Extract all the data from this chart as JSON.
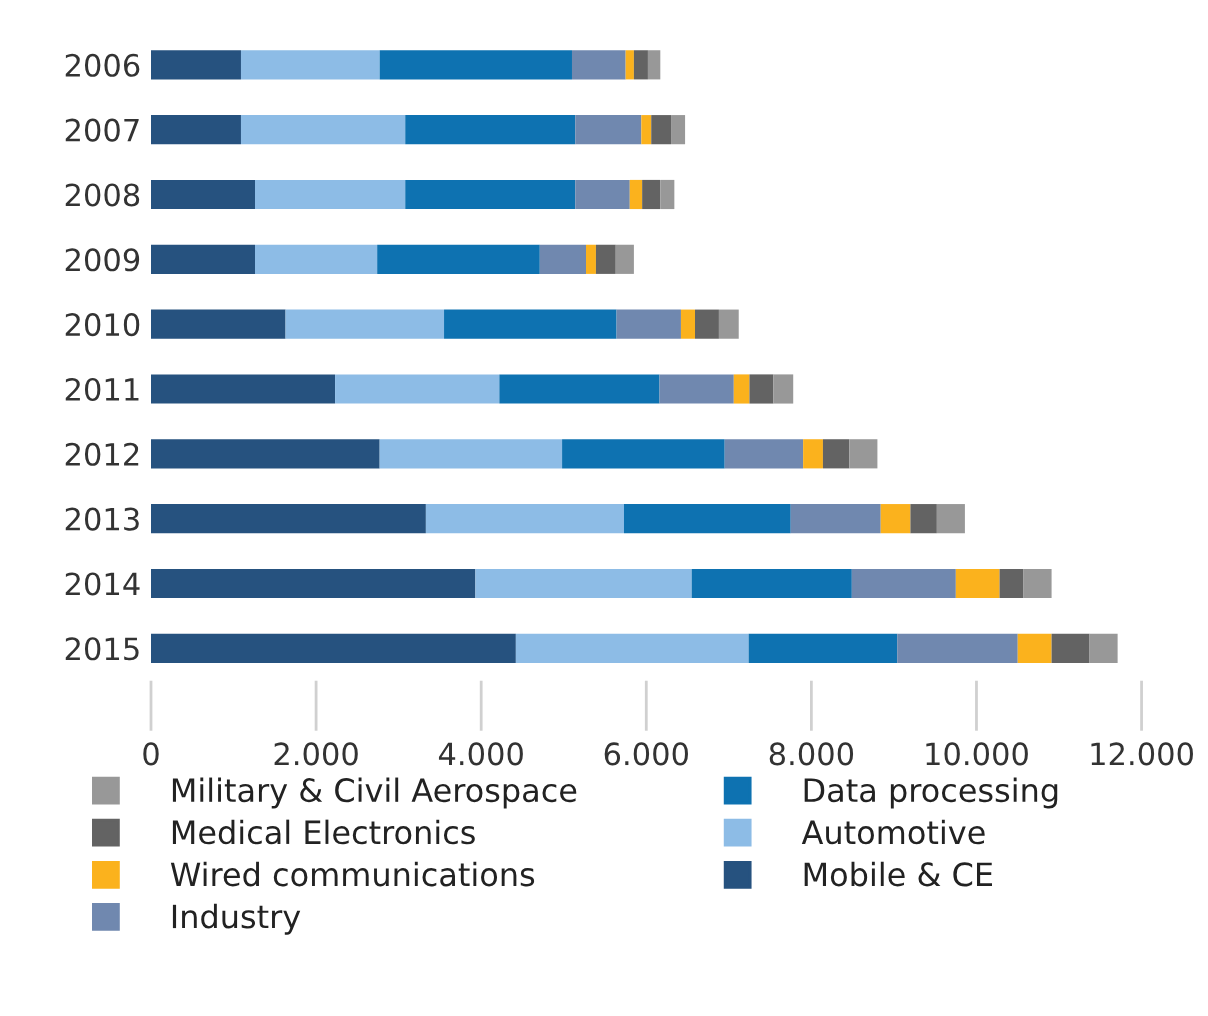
{
  "chart_data": {
    "type": "bar",
    "orientation": "horizontal",
    "stacked": true,
    "categories": [
      "2006",
      "2007",
      "2008",
      "2009",
      "2010",
      "2011",
      "2012",
      "2013",
      "2014",
      "2015"
    ],
    "series": [
      {
        "name": "Mobile & CE",
        "color": "#26527f",
        "values": [
          1090,
          1090,
          1260,
          1260,
          1630,
          2230,
          2770,
          3330,
          3930,
          4420
        ]
      },
      {
        "name": "Automotive",
        "color": "#8dbce6",
        "values": [
          1680,
          1990,
          1820,
          1480,
          1920,
          1990,
          2210,
          2400,
          2620,
          2820
        ]
      },
      {
        "name": "Data processing",
        "color": "#0e72b1",
        "values": [
          2330,
          2060,
          2060,
          1970,
          2090,
          1940,
          1970,
          2020,
          1940,
          1800
        ]
      },
      {
        "name": "Industry",
        "color": "#7088af",
        "values": [
          650,
          800,
          660,
          560,
          780,
          900,
          950,
          1090,
          1260,
          1460
        ]
      },
      {
        "name": "Wired communications",
        "color": "#fbb21d",
        "values": [
          100,
          120,
          150,
          120,
          170,
          190,
          240,
          360,
          530,
          410
        ]
      },
      {
        "name": "Medical Electronics",
        "color": "#636363",
        "values": [
          170,
          240,
          220,
          240,
          290,
          290,
          320,
          320,
          290,
          460
        ]
      },
      {
        "name": "Military & Civil Aerospace",
        "color": "#989898",
        "values": [
          150,
          170,
          170,
          220,
          240,
          240,
          340,
          340,
          340,
          340
        ]
      }
    ],
    "xlim": [
      0,
      12000
    ],
    "xticks": [
      0,
      {
        "value": 2000,
        "label": "2.000"
      },
      {
        "value": 4000,
        "label": "4.000"
      },
      {
        "value": 6000,
        "label": "6.000"
      },
      {
        "value": 8000,
        "label": "8.000"
      },
      {
        "value": 10000,
        "label": "10.000"
      },
      {
        "value": 12000,
        "label": "12.000"
      }
    ],
    "legend": "bottom"
  }
}
